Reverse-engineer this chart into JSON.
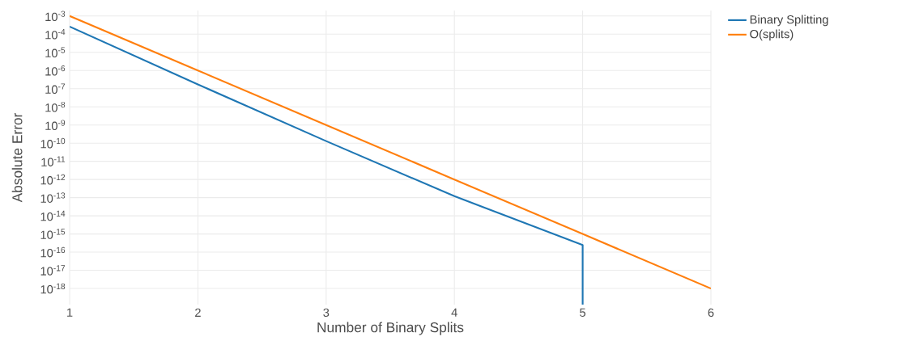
{
  "chart_data": {
    "type": "line",
    "xlabel": "Number of Binary Splits",
    "ylabel": "Absolute Error",
    "log": "y",
    "grid": true,
    "legend": "top right",
    "line_style": "solid",
    "marker": "none",
    "xlim": [
      1,
      6
    ],
    "xticks": [
      1,
      2,
      3,
      4,
      5,
      6
    ],
    "ylim": [
      1.3e-19,
      0.002
    ],
    "yticks": [
      {
        "value": 0.001,
        "label": "10$^{-3}$"
      },
      {
        "value": 0.0001,
        "label": "10$^{-4}$"
      },
      {
        "value": 1e-05,
        "label": "10$^{-5}$"
      },
      {
        "value": 1e-06,
        "label": "10$^{-6}$"
      },
      {
        "value": 1e-07,
        "label": "10$^{-7}$"
      },
      {
        "value": 1e-08,
        "label": "10$^{-8}$"
      },
      {
        "value": 1e-09,
        "label": "10$^{-9}$"
      },
      {
        "value": 1e-10,
        "label": "10$^{-10}$"
      },
      {
        "value": 1e-11,
        "label": "10$^{-11}$"
      },
      {
        "value": 1e-12,
        "label": "10$^{-12}$"
      },
      {
        "value": 1e-13,
        "label": "10$^{-13}$"
      },
      {
        "value": 1e-14,
        "label": "10$^{-14}$"
      },
      {
        "value": 1e-15,
        "label": "10$^{-15}$"
      },
      {
        "value": 1e-16,
        "label": "10$^{-16}$"
      },
      {
        "value": 1e-17,
        "label": "10$^{-17}$"
      },
      {
        "value": 1e-18,
        "label": "10$^{-18}$"
      }
    ],
    "series": [
      {
        "name": "Binary Splitting",
        "color": "#1f77b4",
        "x": [
          1,
          2,
          3,
          4,
          5,
          5
        ],
        "values": [
          0.00026,
          1.7e-07,
          1.3e-10,
          1.2e-13,
          2.5e-16,
          1.3e-19
        ]
      },
      {
        "name": "O(splits)",
        "color": "#ff7f0e",
        "x": [
          1,
          2,
          3,
          4,
          5,
          6
        ],
        "values": [
          0.001,
          1e-06,
          1e-09,
          1e-12,
          1e-15,
          1e-18
        ]
      }
    ]
  }
}
